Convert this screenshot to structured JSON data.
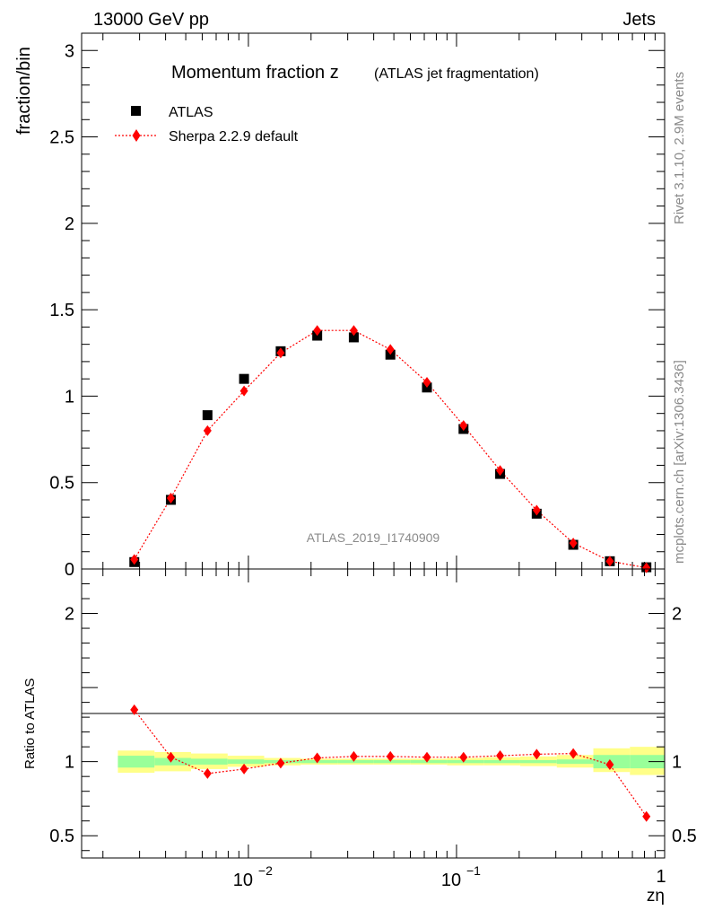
{
  "header": {
    "left": "13000 GeV pp",
    "right": "Jets"
  },
  "side": {
    "rivet": "Rivet 3.1.10,  2.9M events",
    "mcplots": "mcplots.cern.ch [arXiv:1306.3436]"
  },
  "chart_data": [
    {
      "type": "scatter",
      "title": "Momentum fraction z",
      "subtitle": "(ATLAS jet fragmentation)",
      "ylabel": "fraction/bin",
      "xlabel": "zη",
      "watermark": "ATLAS_2019_I1740909",
      "x_scale": "log",
      "xlim": [
        0.00158,
        1.0
      ],
      "ylim": [
        0,
        3.1
      ],
      "y_ticks": [
        {
          "v": 0,
          "label": "0"
        },
        {
          "v": 0.5,
          "label": "0.5"
        },
        {
          "v": 1,
          "label": "1"
        },
        {
          "v": 1.5,
          "label": "1.5"
        },
        {
          "v": 2,
          "label": "2"
        },
        {
          "v": 2.5,
          "label": "2.5"
        },
        {
          "v": 3,
          "label": "3"
        }
      ],
      "legend_position": "top-left",
      "series": [
        {
          "name": "ATLAS",
          "marker": "square",
          "color": "#000000",
          "x": [
            0.00283,
            0.00424,
            0.00636,
            0.00953,
            0.01429,
            0.02141,
            0.03209,
            0.0481,
            0.07209,
            0.10805,
            0.16196,
            0.24275,
            0.36385,
            0.54536,
            0.8174
          ],
          "y": [
            0.04,
            0.4,
            0.89,
            1.1,
            1.26,
            1.35,
            1.34,
            1.24,
            1.05,
            0.81,
            0.55,
            0.32,
            0.14,
            0.045,
            0.01
          ]
        },
        {
          "name": "Sherpa 2.2.9 default",
          "marker": "diamond",
          "color": "#ff0000",
          "line": "dotted",
          "x": [
            0.00283,
            0.00424,
            0.00636,
            0.00953,
            0.01429,
            0.02141,
            0.03209,
            0.0481,
            0.07209,
            0.10805,
            0.16196,
            0.24275,
            0.36385,
            0.54536,
            0.8174
          ],
          "y": [
            0.055,
            0.41,
            0.8,
            1.03,
            1.25,
            1.38,
            1.38,
            1.27,
            1.08,
            0.83,
            0.57,
            0.34,
            0.15,
            0.045,
            0.007
          ]
        }
      ]
    },
    {
      "type": "scatter",
      "ylabel": "Ratio to ATLAS",
      "xlabel": "zη",
      "x_scale": "log",
      "xlim": [
        0.00158,
        1.0
      ],
      "ylim": [
        0.35,
        2.3
      ],
      "y_ticks": [
        {
          "v": 0.5,
          "label": "0.5"
        },
        {
          "v": 1,
          "label": "1"
        },
        {
          "v": 2,
          "label": "2"
        }
      ],
      "x_ticks": [
        {
          "v": 0.01,
          "base": "10",
          "exp": "−2"
        },
        {
          "v": 0.1,
          "base": "10",
          "exp": "−1"
        },
        {
          "v": 1,
          "base": "1",
          "exp": ""
        }
      ],
      "bands": {
        "edges": [
          0.00236,
          0.00354,
          0.0053,
          0.00795,
          0.01191,
          0.01785,
          0.02676,
          0.0401,
          0.0601,
          0.09006,
          0.135,
          0.2023,
          0.3032,
          0.4544,
          0.6809,
          1.0
        ],
        "stat_color": "#99ff99",
        "total_color": "#ffff88",
        "stat_lo": [
          0.96,
          0.975,
          0.98,
          0.985,
          0.99,
          0.99,
          0.99,
          0.99,
          0.99,
          0.99,
          0.99,
          0.99,
          0.985,
          0.955,
          0.955
        ],
        "stat_hi": [
          1.04,
          1.025,
          1.02,
          1.015,
          1.01,
          1.01,
          1.01,
          1.01,
          1.01,
          1.01,
          1.01,
          1.01,
          1.015,
          1.045,
          1.045
        ],
        "total_lo": [
          0.925,
          0.935,
          0.95,
          0.965,
          0.975,
          0.98,
          0.98,
          0.98,
          0.98,
          0.975,
          0.975,
          0.97,
          0.96,
          0.93,
          0.91
        ],
        "total_hi": [
          1.075,
          1.065,
          1.055,
          1.04,
          1.025,
          1.02,
          1.02,
          1.02,
          1.02,
          1.025,
          1.03,
          1.035,
          1.045,
          1.09,
          1.1
        ]
      },
      "series": [
        {
          "name": "Sherpa 2.2.9 default",
          "marker": "diamond",
          "color": "#ff0000",
          "line": "dotted",
          "x": [
            0.00283,
            0.00424,
            0.00636,
            0.00953,
            0.01429,
            0.02141,
            0.03209,
            0.0481,
            0.07209,
            0.10805,
            0.16196,
            0.24275,
            0.36385,
            0.54536,
            0.8174
          ],
          "y": [
            1.35,
            1.03,
            0.92,
            0.95,
            0.99,
            1.025,
            1.035,
            1.035,
            1.03,
            1.03,
            1.04,
            1.05,
            1.055,
            0.98,
            0.63
          ]
        }
      ]
    }
  ]
}
